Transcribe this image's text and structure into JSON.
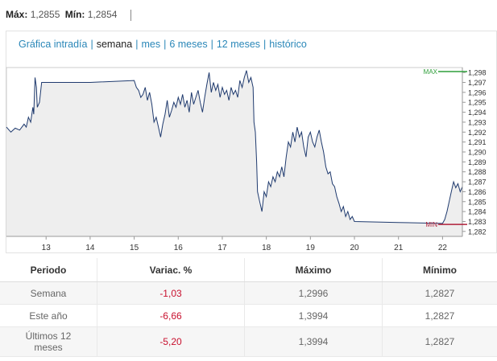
{
  "header": {
    "max_label": "Máx:",
    "max_value": "1,2855",
    "min_label": "Mín:",
    "min_value": "1,2854"
  },
  "tabs": [
    {
      "label": "Gráfica intradía",
      "active": false
    },
    {
      "label": "semana",
      "active": true
    },
    {
      "label": "mes",
      "active": false
    },
    {
      "label": "6 meses",
      "active": false
    },
    {
      "label": "12 meses",
      "active": false
    },
    {
      "label": "histórico",
      "active": false
    }
  ],
  "chart_data": {
    "type": "line",
    "x_ticks": [
      "13",
      "14",
      "15",
      "16",
      "17",
      "18",
      "19",
      "20",
      "21",
      "22"
    ],
    "y_ticks": [
      "1,282",
      "1,283",
      "1,284",
      "1,285",
      "1,286",
      "1,287",
      "1,288",
      "1,289",
      "1,290",
      "1,291",
      "1,292",
      "1,293",
      "1,294",
      "1,295",
      "1,296",
      "1,297",
      "1,298"
    ],
    "ylim": [
      1.2815,
      1.2985
    ],
    "xlim": [
      12.1,
      22.45
    ],
    "max_marker": {
      "label": "MAX",
      "value": 1.2981,
      "color": "#2e9e3a"
    },
    "min_marker": {
      "label": "MIN",
      "value": 1.2827,
      "color": "#b0203a"
    },
    "line_color": "#1f3a6e",
    "fill_color": "#eeeeee",
    "series": [
      {
        "points": [
          [
            12.1,
            1.2925
          ],
          [
            12.2,
            1.292
          ],
          [
            12.3,
            1.2924
          ],
          [
            12.4,
            1.2922
          ],
          [
            12.5,
            1.2928
          ],
          [
            12.55,
            1.2925
          ],
          [
            12.6,
            1.2935
          ],
          [
            12.65,
            1.293
          ],
          [
            12.7,
            1.2945
          ],
          [
            12.72,
            1.2938
          ],
          [
            12.75,
            1.2975
          ],
          [
            12.78,
            1.2965
          ],
          [
            12.8,
            1.2945
          ],
          [
            12.85,
            1.295
          ],
          [
            12.9,
            1.297
          ],
          [
            14.0,
            1.297
          ],
          [
            15.0,
            1.2972
          ],
          [
            15.05,
            1.2965
          ],
          [
            15.1,
            1.2962
          ],
          [
            15.15,
            1.2955
          ],
          [
            15.2,
            1.2958
          ],
          [
            15.25,
            1.2965
          ],
          [
            15.3,
            1.2952
          ],
          [
            15.35,
            1.296
          ],
          [
            15.4,
            1.2948
          ],
          [
            15.45,
            1.293
          ],
          [
            15.5,
            1.2935
          ],
          [
            15.55,
            1.2925
          ],
          [
            15.6,
            1.2915
          ],
          [
            15.65,
            1.2928
          ],
          [
            15.7,
            1.2938
          ],
          [
            15.75,
            1.2952
          ],
          [
            15.8,
            1.2935
          ],
          [
            15.85,
            1.2942
          ],
          [
            15.9,
            1.295
          ],
          [
            15.95,
            1.2945
          ],
          [
            16.0,
            1.2955
          ],
          [
            16.05,
            1.2948
          ],
          [
            16.1,
            1.2958
          ],
          [
            16.15,
            1.2945
          ],
          [
            16.2,
            1.2952
          ],
          [
            16.25,
            1.294
          ],
          [
            16.3,
            1.296
          ],
          [
            16.35,
            1.2948
          ],
          [
            16.4,
            1.2955
          ],
          [
            16.45,
            1.2962
          ],
          [
            16.5,
            1.295
          ],
          [
            16.55,
            1.294
          ],
          [
            16.6,
            1.2955
          ],
          [
            16.65,
            1.2968
          ],
          [
            16.7,
            1.298
          ],
          [
            16.75,
            1.296
          ],
          [
            16.8,
            1.297
          ],
          [
            16.85,
            1.2962
          ],
          [
            16.9,
            1.2968
          ],
          [
            16.95,
            1.2955
          ],
          [
            17.0,
            1.2965
          ],
          [
            17.05,
            1.2958
          ],
          [
            17.1,
            1.2962
          ],
          [
            17.15,
            1.2952
          ],
          [
            17.2,
            1.2965
          ],
          [
            17.25,
            1.2958
          ],
          [
            17.3,
            1.2962
          ],
          [
            17.35,
            1.2955
          ],
          [
            17.4,
            1.2972
          ],
          [
            17.45,
            1.2965
          ],
          [
            17.5,
            1.2975
          ],
          [
            17.55,
            1.2982
          ],
          [
            17.6,
            1.297
          ],
          [
            17.65,
            1.2975
          ],
          [
            17.7,
            1.2965
          ],
          [
            17.72,
            1.293
          ],
          [
            17.75,
            1.292
          ],
          [
            17.78,
            1.289
          ],
          [
            17.8,
            1.286
          ],
          [
            17.85,
            1.285
          ],
          [
            17.9,
            1.284
          ],
          [
            17.95,
            1.286
          ],
          [
            18.0,
            1.2855
          ],
          [
            18.05,
            1.287
          ],
          [
            18.1,
            1.2865
          ],
          [
            18.15,
            1.2875
          ],
          [
            18.2,
            1.287
          ],
          [
            18.25,
            1.288
          ],
          [
            18.3,
            1.2875
          ],
          [
            18.35,
            1.2885
          ],
          [
            18.4,
            1.2875
          ],
          [
            18.45,
            1.2895
          ],
          [
            18.5,
            1.291
          ],
          [
            18.55,
            1.2905
          ],
          [
            18.6,
            1.292
          ],
          [
            18.65,
            1.291
          ],
          [
            18.7,
            1.2925
          ],
          [
            18.75,
            1.2915
          ],
          [
            18.8,
            1.292
          ],
          [
            18.85,
            1.2905
          ],
          [
            18.9,
            1.2895
          ],
          [
            18.95,
            1.2915
          ],
          [
            19.0,
            1.292
          ],
          [
            19.05,
            1.291
          ],
          [
            19.1,
            1.2905
          ],
          [
            19.15,
            1.2915
          ],
          [
            19.2,
            1.2922
          ],
          [
            19.25,
            1.291
          ],
          [
            19.3,
            1.29
          ],
          [
            19.35,
            1.2885
          ],
          [
            19.4,
            1.2878
          ],
          [
            19.45,
            1.288
          ],
          [
            19.5,
            1.2868
          ],
          [
            19.55,
            1.2865
          ],
          [
            19.6,
            1.2855
          ],
          [
            19.65,
            1.2848
          ],
          [
            19.7,
            1.284
          ],
          [
            19.75,
            1.2845
          ],
          [
            19.8,
            1.2835
          ],
          [
            19.85,
            1.284
          ],
          [
            19.9,
            1.2832
          ],
          [
            19.95,
            1.2835
          ],
          [
            20.0,
            1.283
          ],
          [
            21.0,
            1.2829
          ],
          [
            22.0,
            1.2828
          ],
          [
            22.05,
            1.2832
          ],
          [
            22.1,
            1.284
          ],
          [
            22.15,
            1.285
          ],
          [
            22.2,
            1.286
          ],
          [
            22.25,
            1.287
          ],
          [
            22.3,
            1.2864
          ],
          [
            22.35,
            1.2868
          ],
          [
            22.4,
            1.286
          ],
          [
            22.45,
            1.2865
          ]
        ]
      }
    ]
  },
  "table": {
    "headers": [
      "Periodo",
      "Variac. %",
      "Máximo",
      "Mínimo"
    ],
    "rows": [
      {
        "period": "Semana",
        "change": "-1,03",
        "max": "1,2996",
        "min": "1,2827"
      },
      {
        "period": "Este año",
        "change": "-6,66",
        "max": "1,3994",
        "min": "1,2827"
      },
      {
        "period": "Últimos 12 meses",
        "change": "-5,20",
        "max": "1,3994",
        "min": "1,2827"
      }
    ]
  }
}
